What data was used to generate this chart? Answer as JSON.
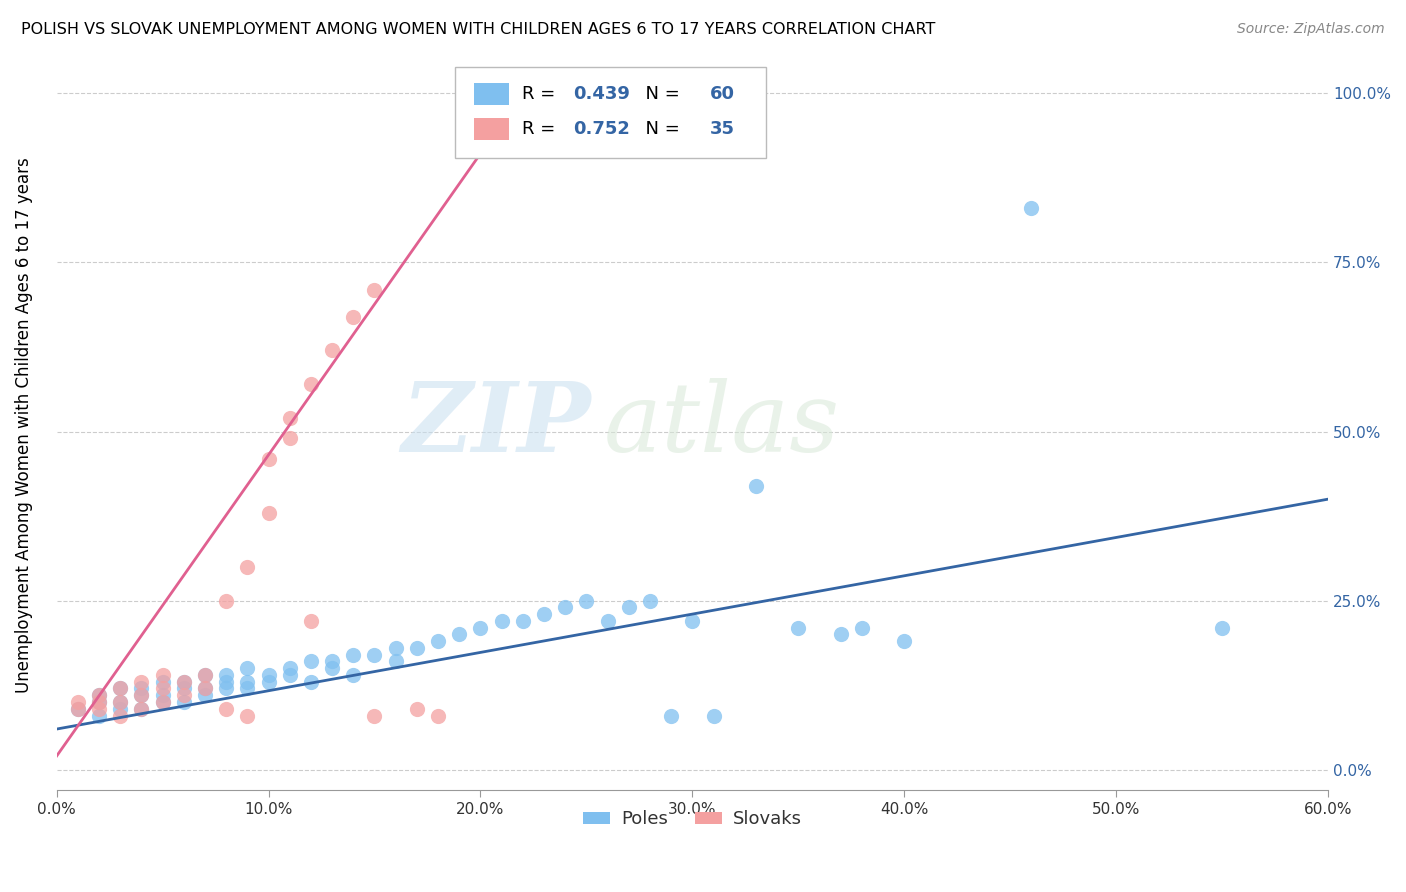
{
  "title": "POLISH VS SLOVAK UNEMPLOYMENT AMONG WOMEN WITH CHILDREN AGES 6 TO 17 YEARS CORRELATION CHART",
  "source": "Source: ZipAtlas.com",
  "ylabel": "Unemployment Among Women with Children Ages 6 to 17 years",
  "poles_color": "#7fbfef",
  "slovaks_color": "#f4a0a0",
  "poles_line_color": "#3465a4",
  "slovaks_line_color": "#e06090",
  "poles_R": 0.439,
  "poles_N": 60,
  "slovaks_R": 0.752,
  "slovaks_N": 35,
  "legend_r_color": "#3465a4",
  "watermark_zip": "ZIP",
  "watermark_atlas": "atlas",
  "poles_scatter": [
    [
      0.01,
      0.09
    ],
    [
      0.02,
      0.11
    ],
    [
      0.02,
      0.08
    ],
    [
      0.02,
      0.1
    ],
    [
      0.03,
      0.12
    ],
    [
      0.03,
      0.09
    ],
    [
      0.03,
      0.1
    ],
    [
      0.04,
      0.11
    ],
    [
      0.04,
      0.09
    ],
    [
      0.04,
      0.12
    ],
    [
      0.05,
      0.13
    ],
    [
      0.05,
      0.1
    ],
    [
      0.05,
      0.11
    ],
    [
      0.06,
      0.12
    ],
    [
      0.06,
      0.1
    ],
    [
      0.06,
      0.13
    ],
    [
      0.07,
      0.12
    ],
    [
      0.07,
      0.11
    ],
    [
      0.07,
      0.14
    ],
    [
      0.08,
      0.13
    ],
    [
      0.08,
      0.12
    ],
    [
      0.08,
      0.14
    ],
    [
      0.09,
      0.13
    ],
    [
      0.09,
      0.15
    ],
    [
      0.09,
      0.12
    ],
    [
      0.1,
      0.14
    ],
    [
      0.1,
      0.13
    ],
    [
      0.11,
      0.15
    ],
    [
      0.11,
      0.14
    ],
    [
      0.12,
      0.16
    ],
    [
      0.12,
      0.13
    ],
    [
      0.13,
      0.16
    ],
    [
      0.13,
      0.15
    ],
    [
      0.14,
      0.17
    ],
    [
      0.14,
      0.14
    ],
    [
      0.15,
      0.17
    ],
    [
      0.16,
      0.18
    ],
    [
      0.16,
      0.16
    ],
    [
      0.17,
      0.18
    ],
    [
      0.18,
      0.19
    ],
    [
      0.19,
      0.2
    ],
    [
      0.2,
      0.21
    ],
    [
      0.21,
      0.22
    ],
    [
      0.22,
      0.22
    ],
    [
      0.23,
      0.23
    ],
    [
      0.24,
      0.24
    ],
    [
      0.25,
      0.25
    ],
    [
      0.26,
      0.22
    ],
    [
      0.27,
      0.24
    ],
    [
      0.28,
      0.25
    ],
    [
      0.29,
      0.08
    ],
    [
      0.3,
      0.22
    ],
    [
      0.31,
      0.08
    ],
    [
      0.33,
      0.42
    ],
    [
      0.35,
      0.21
    ],
    [
      0.37,
      0.2
    ],
    [
      0.38,
      0.21
    ],
    [
      0.4,
      0.19
    ],
    [
      0.46,
      0.83
    ],
    [
      0.55,
      0.21
    ]
  ],
  "slovaks_scatter": [
    [
      0.01,
      0.1
    ],
    [
      0.01,
      0.09
    ],
    [
      0.02,
      0.11
    ],
    [
      0.02,
      0.09
    ],
    [
      0.02,
      0.1
    ],
    [
      0.03,
      0.12
    ],
    [
      0.03,
      0.1
    ],
    [
      0.03,
      0.08
    ],
    [
      0.04,
      0.13
    ],
    [
      0.04,
      0.11
    ],
    [
      0.04,
      0.09
    ],
    [
      0.05,
      0.14
    ],
    [
      0.05,
      0.12
    ],
    [
      0.05,
      0.1
    ],
    [
      0.06,
      0.13
    ],
    [
      0.06,
      0.11
    ],
    [
      0.07,
      0.14
    ],
    [
      0.07,
      0.12
    ],
    [
      0.08,
      0.25
    ],
    [
      0.08,
      0.09
    ],
    [
      0.09,
      0.3
    ],
    [
      0.09,
      0.08
    ],
    [
      0.1,
      0.38
    ],
    [
      0.1,
      0.46
    ],
    [
      0.11,
      0.52
    ],
    [
      0.11,
      0.49
    ],
    [
      0.12,
      0.57
    ],
    [
      0.12,
      0.22
    ],
    [
      0.13,
      0.62
    ],
    [
      0.14,
      0.67
    ],
    [
      0.15,
      0.71
    ],
    [
      0.15,
      0.08
    ],
    [
      0.17,
      0.09
    ],
    [
      0.18,
      0.08
    ],
    [
      0.21,
      0.97
    ]
  ],
  "poles_trend_x": [
    0.0,
    0.6
  ],
  "poles_trend_y": [
    0.06,
    0.4
  ],
  "slovaks_trend_x": [
    0.0,
    0.22
  ],
  "slovaks_trend_y": [
    0.02,
    1.0
  ],
  "xlim": [
    0.0,
    0.6
  ],
  "ylim": [
    -0.03,
    1.05
  ],
  "xtick_vals": [
    0.0,
    0.1,
    0.2,
    0.3,
    0.4,
    0.5,
    0.6
  ],
  "ytick_vals": [
    0.0,
    0.25,
    0.5,
    0.75,
    1.0
  ],
  "xtick_labels": [
    "0.0%",
    "10.0%",
    "20.0%",
    "30.0%",
    "40.0%",
    "50.0%",
    "60.0%"
  ],
  "ytick_labels": [
    "0.0%",
    "25.0%",
    "50.0%",
    "75.0%",
    "100.0%"
  ]
}
